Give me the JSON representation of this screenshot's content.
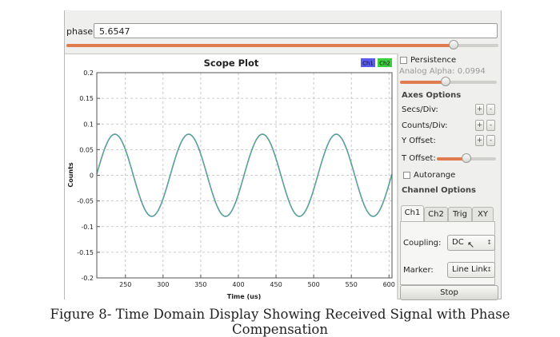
{
  "phase_control": {
    "label": "phase:",
    "value": "5.6547",
    "slider_fraction": 0.897
  },
  "plot": {
    "title": "Scope Plot",
    "legend": [
      {
        "label": "Ch1",
        "color": "#5a5af0"
      },
      {
        "label": "Ch2",
        "color": "#3ccf3c"
      }
    ]
  },
  "side_panel": {
    "persistence_label": "Persistence",
    "persistence_checked": false,
    "analog_alpha_label": "Analog Alpha: 0.0994",
    "analog_alpha_fraction": 0.47,
    "axes_options_title": "Axes Options",
    "secs_div_label": "Secs/Div:",
    "counts_div_label": "Counts/Div:",
    "y_offset_label": "Y Offset:",
    "plus_label": "+",
    "minus_label": "-",
    "t_offset_label": "T Offset:",
    "t_offset_fraction": 0.5,
    "autorange_label": "Autorange",
    "autorange_checked": false,
    "channel_options_title": "Channel Options",
    "tabs": [
      {
        "label": "Ch1",
        "active": true
      },
      {
        "label": "Ch2",
        "active": false
      },
      {
        "label": "Trig",
        "active": false
      },
      {
        "label": "XY",
        "active": false
      }
    ],
    "coupling_label": "Coupling:",
    "coupling_value": "DC",
    "marker_label": "Marker:",
    "marker_value": "Line Link",
    "stop_label": "Stop"
  },
  "caption": "Figure 8- Time Domain Display Showing Received Signal with Phase Compensation",
  "chart_data": {
    "type": "line",
    "title": "Scope Plot",
    "xlabel": "Time (us)",
    "ylabel": "Counts",
    "xlim": [
      212,
      604
    ],
    "ylim": [
      -0.2,
      0.2
    ],
    "x_ticks": [
      250,
      300,
      350,
      400,
      450,
      500,
      550,
      600
    ],
    "y_ticks": [
      0.2,
      0.15,
      0.1,
      0.05,
      0,
      -0.05,
      -0.1,
      -0.15,
      -0.2
    ],
    "grid": true,
    "legend_position": "top-right",
    "series": [
      {
        "name": "Ch1",
        "color": "#5a5af0",
        "amplitude": 0.08,
        "period_us": 98,
        "peak_at_us": 236
      },
      {
        "name": "Ch2",
        "color": "#3ccf3c",
        "amplitude": 0.08,
        "period_us": 98,
        "peak_at_us": 236
      }
    ]
  }
}
